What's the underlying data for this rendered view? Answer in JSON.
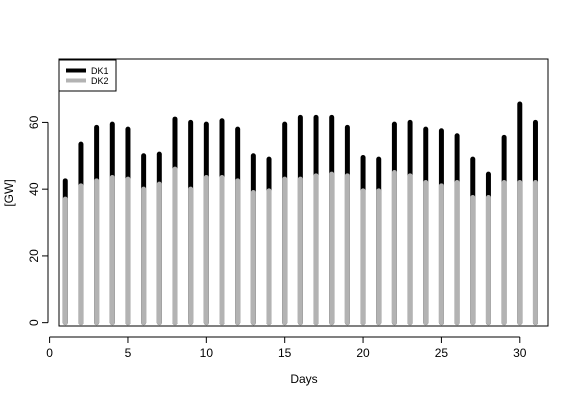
{
  "chart_data": {
    "type": "bar",
    "title": "",
    "xlabel": "Days",
    "ylabel": "[GW]",
    "x": [
      1,
      2,
      3,
      4,
      5,
      6,
      7,
      8,
      9,
      10,
      11,
      12,
      13,
      14,
      15,
      16,
      17,
      18,
      19,
      20,
      21,
      22,
      23,
      24,
      25,
      26,
      27,
      28,
      29,
      30,
      31
    ],
    "xlim": [
      0.6,
      31.8
    ],
    "ylim": [
      -1,
      79
    ],
    "xticks": [
      "0",
      "5",
      "10",
      "15",
      "20",
      "25",
      "30"
    ],
    "xtick_values": [
      0,
      5,
      10,
      15,
      20,
      25,
      30
    ],
    "yticks": [
      "0",
      "20",
      "40",
      "60"
    ],
    "ytick_values": [
      0,
      20,
      40,
      60
    ],
    "grid": false,
    "legend_position": "top-left",
    "series": [
      {
        "name": "DK1",
        "color": "#000000",
        "values": [
          42.5,
          53.5,
          58.5,
          59.5,
          58,
          50,
          50.5,
          61,
          60,
          59.5,
          60.5,
          58,
          50,
          49,
          59.5,
          61.5,
          61.5,
          61.5,
          58.5,
          49.5,
          49,
          59.5,
          60,
          58,
          57.5,
          56,
          49,
          44.5,
          55.5,
          65.5,
          60
        ]
      },
      {
        "name": "DK2",
        "color": "#b3b3b3",
        "values": [
          37,
          41,
          42.5,
          43.5,
          43,
          40,
          41.5,
          46,
          40,
          43.5,
          43.5,
          42.5,
          39,
          39.5,
          43,
          43,
          44,
          44.5,
          44,
          39.5,
          39.5,
          45,
          44,
          42,
          41,
          42,
          37.5,
          37.5,
          42,
          42,
          42
        ]
      }
    ]
  }
}
